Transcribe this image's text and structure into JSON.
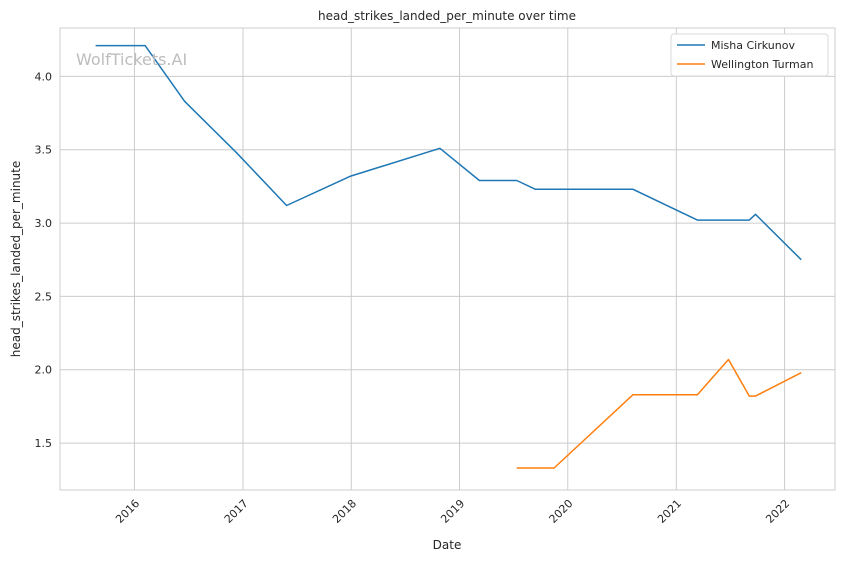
{
  "watermark": "WolfTickets.AI",
  "chart_data": {
    "type": "line",
    "title": "head_strikes_landed_per_minute over time",
    "xlabel": "Date",
    "ylabel": "head_strikes_landed_per_minute",
    "x_type": "date",
    "xlim": [
      "2015-04-25",
      "2022-06-20"
    ],
    "ylim": [
      1.18,
      4.33
    ],
    "x_ticks": [
      "2016-01-01",
      "2017-01-01",
      "2018-01-01",
      "2019-01-01",
      "2020-01-01",
      "2021-01-01",
      "2022-01-01"
    ],
    "x_tick_labels": [
      "2016",
      "2017",
      "2018",
      "2019",
      "2020",
      "2021",
      "2022"
    ],
    "y_ticks": [
      1.5,
      2.0,
      2.5,
      3.0,
      3.5,
      4.0
    ],
    "y_tick_labels": [
      "1.5",
      "2.0",
      "2.5",
      "3.0",
      "3.5",
      "4.0"
    ],
    "grid": true,
    "legend_position": "top-right",
    "series": [
      {
        "name": "Misha Cirkunov",
        "color": "#1f77b4",
        "x": [
          "2015-08-23",
          "2016-02-06",
          "2016-06-18",
          "2016-12-10",
          "2017-05-28",
          "2017-12-30",
          "2018-10-27",
          "2019-03-09",
          "2019-07-13",
          "2019-09-14",
          "2020-08-08",
          "2021-03-13",
          "2021-09-04",
          "2021-09-25",
          "2022-02-26"
        ],
        "y": [
          4.21,
          4.21,
          3.83,
          3.48,
          3.12,
          3.32,
          3.51,
          3.29,
          3.29,
          3.23,
          3.23,
          3.02,
          3.02,
          3.06,
          2.75
        ]
      },
      {
        "name": "Wellington Turman",
        "color": "#ff7f0e",
        "x": [
          "2019-07-13",
          "2019-11-16",
          "2020-08-08",
          "2021-03-13",
          "2021-06-26",
          "2021-09-04",
          "2021-09-25",
          "2022-02-26"
        ],
        "y": [
          1.33,
          1.33,
          1.83,
          1.83,
          2.07,
          1.82,
          1.82,
          1.98
        ]
      }
    ]
  }
}
